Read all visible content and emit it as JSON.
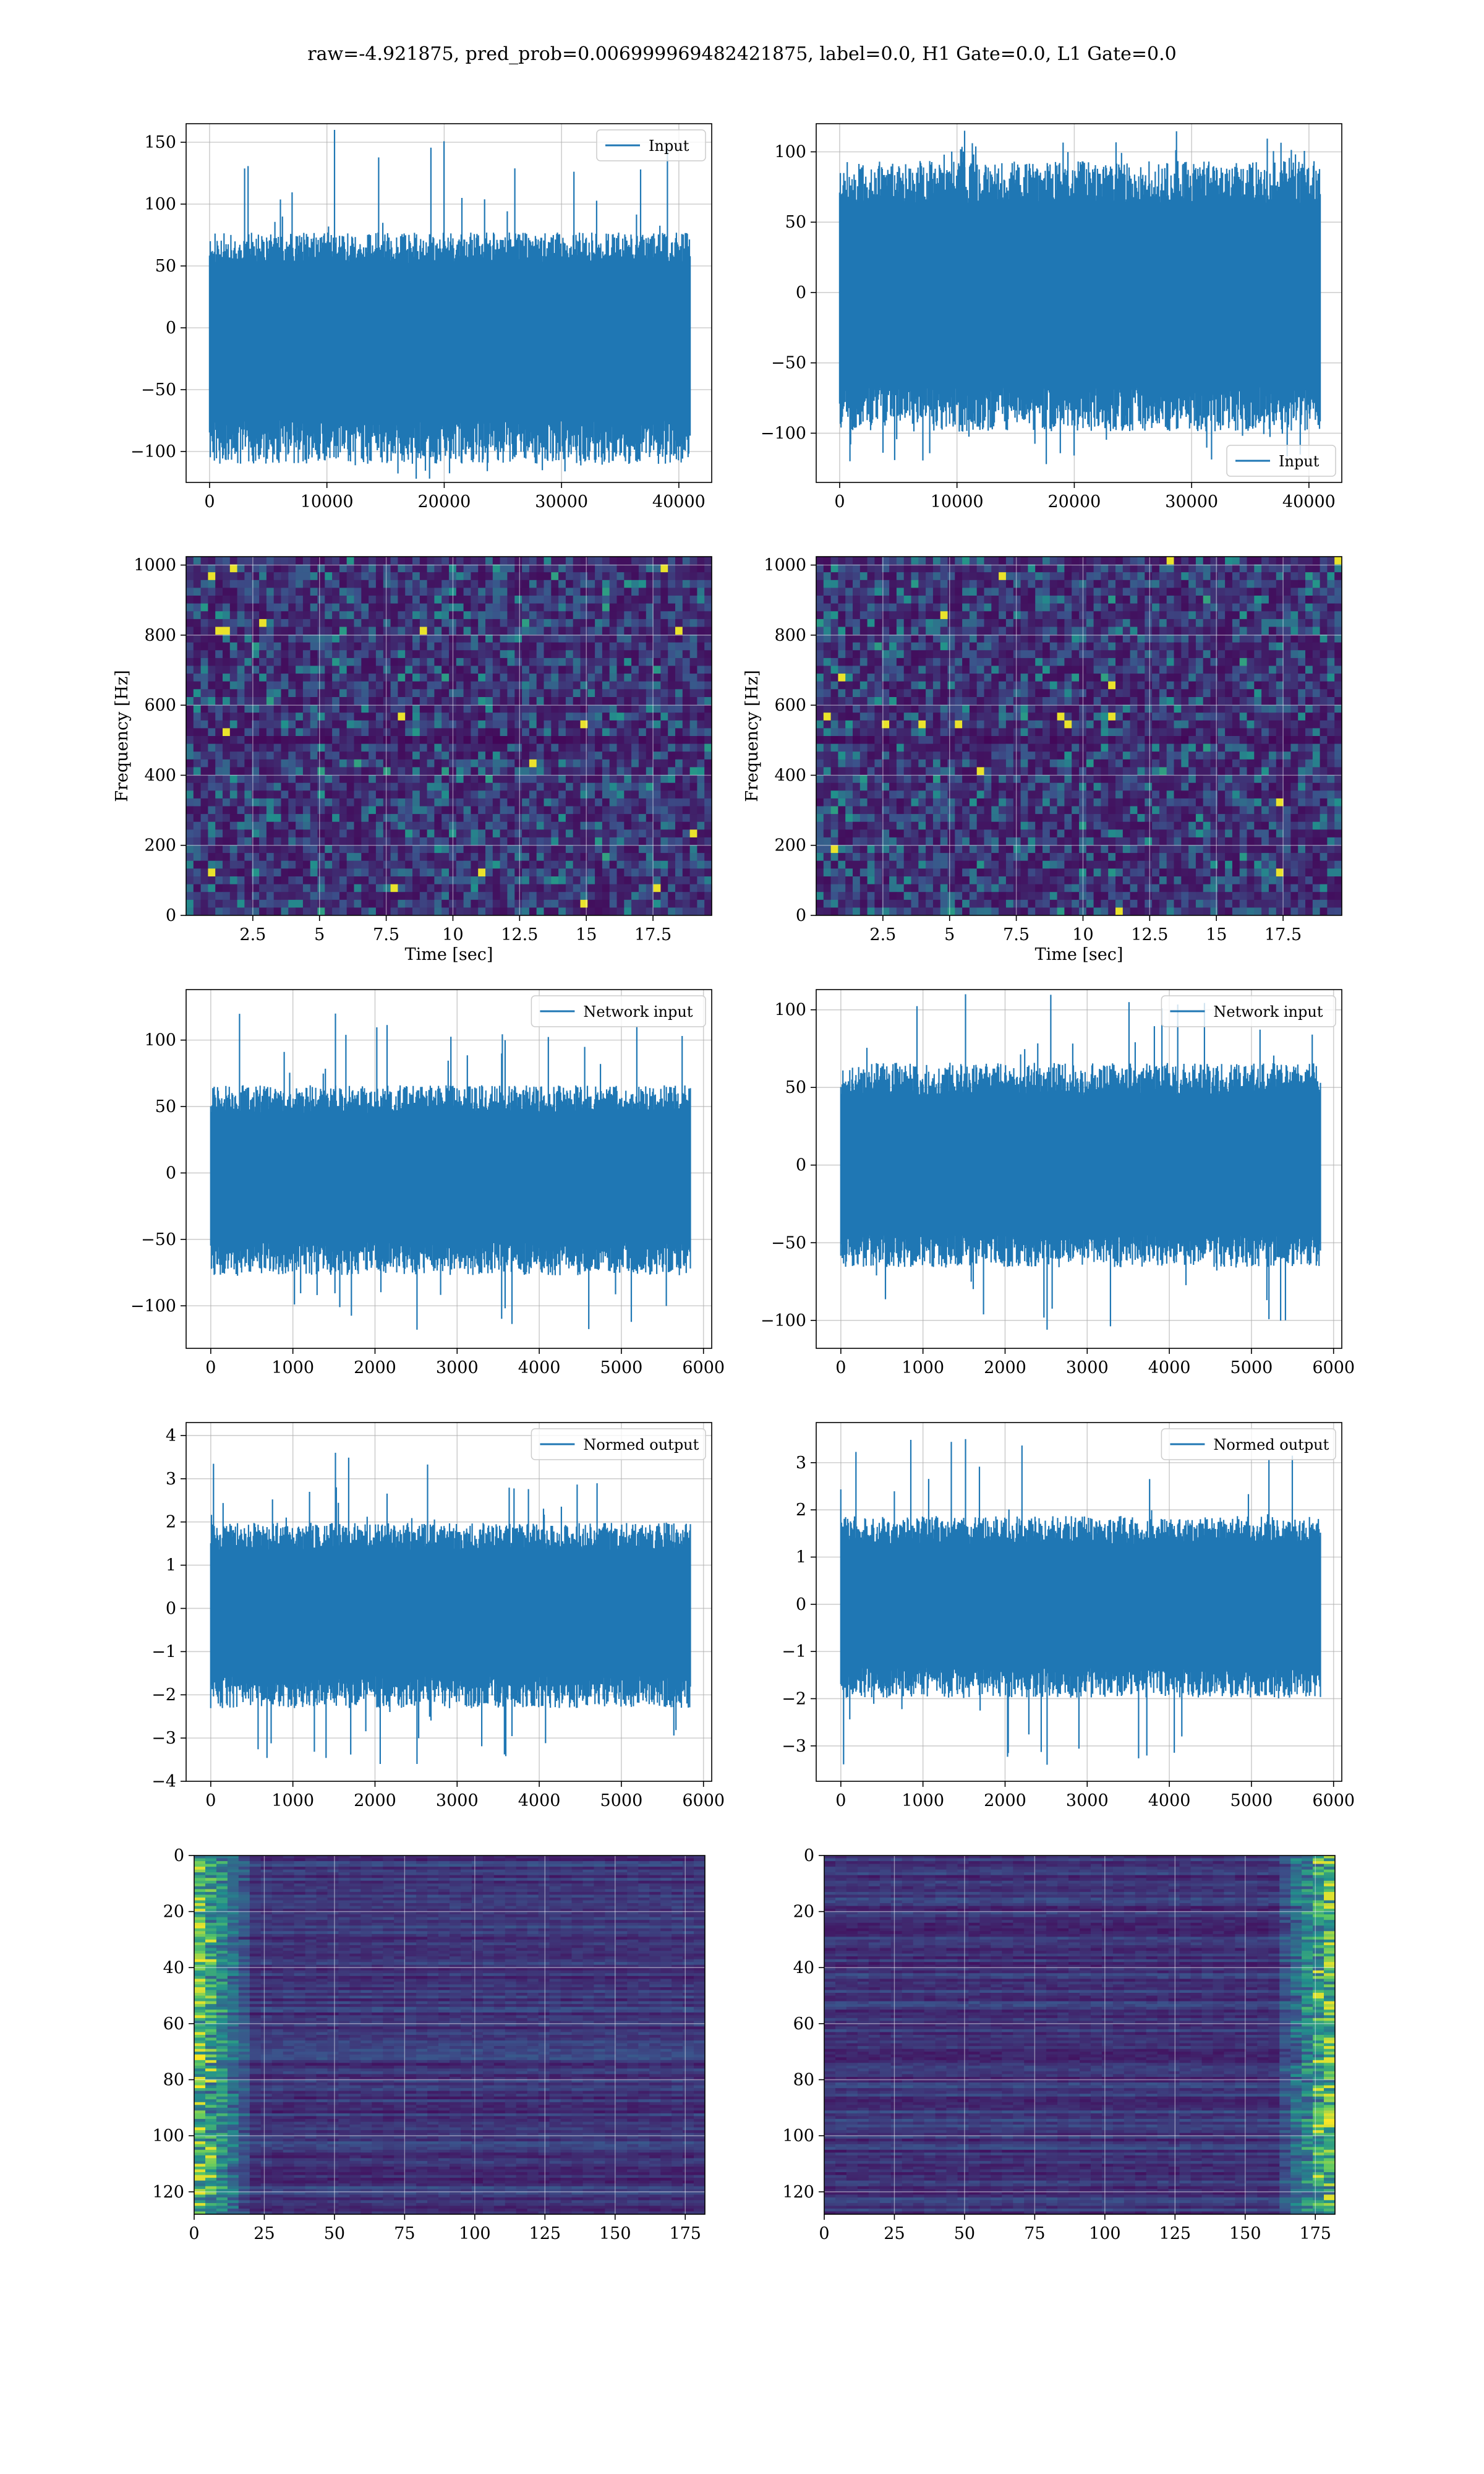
{
  "figure": {
    "title": "raw=-4.921875, pred_prob=0.006999969482421875, label=0.0, H1 Gate=0.0, L1 Gate=0.0",
    "colors": {
      "line": "#1f77b4",
      "grid": "#b0b0b0",
      "viridis_low": "#440154",
      "viridis_mid": "#21918c",
      "viridis_high": "#fde725"
    }
  },
  "chart_data": [
    {
      "id": "input-h1",
      "type": "line",
      "title": "",
      "xlabel": "",
      "ylabel": "",
      "legend": {
        "label": "Input",
        "placement": "top-right"
      },
      "xlim": [
        -2000,
        42800
      ],
      "ylim": [
        -125,
        165
      ],
      "xticks": [
        0,
        10000,
        20000,
        30000,
        40000
      ],
      "yticks": [
        -100,
        -50,
        0,
        50,
        100,
        150
      ],
      "grid": true,
      "series": [
        {
          "name": "Input",
          "x_range": [
            0,
            40960
          ],
          "band": [
            -100,
            70
          ],
          "peak_max": 160,
          "peak_min": -122,
          "samples": 700,
          "seed": 11
        }
      ]
    },
    {
      "id": "input-l1",
      "type": "line",
      "title": "",
      "xlabel": "",
      "ylabel": "",
      "legend": {
        "label": "Input",
        "placement": "bottom-right"
      },
      "xlim": [
        -2000,
        42800
      ],
      "ylim": [
        -135,
        120
      ],
      "xticks": [
        0,
        10000,
        20000,
        30000,
        40000
      ],
      "yticks": [
        -100,
        -50,
        0,
        50,
        100
      ],
      "grid": true,
      "series": [
        {
          "name": "Input",
          "x_range": [
            0,
            40960
          ],
          "band": [
            -90,
            85
          ],
          "peak_max": 115,
          "peak_min": -122,
          "samples": 700,
          "seed": 23
        }
      ]
    },
    {
      "id": "spectrogram-h1",
      "type": "heatmap",
      "title": "",
      "xlabel": "Time [sec]",
      "ylabel": "Frequency [Hz]",
      "xlim": [
        0,
        19.7
      ],
      "ylim": [
        0,
        1024
      ],
      "xticks": [
        2.5,
        5.0,
        7.5,
        10.0,
        12.5,
        15.0,
        17.5
      ],
      "yticks": [
        0,
        200,
        400,
        600,
        800,
        1000
      ],
      "grid": true,
      "colormap": "viridis",
      "cells": [
        72,
        46
      ],
      "seed": 5
    },
    {
      "id": "spectrogram-l1",
      "type": "heatmap",
      "title": "",
      "xlabel": "Time [sec]",
      "ylabel": "Frequency [Hz]",
      "xlim": [
        0,
        19.7
      ],
      "ylim": [
        0,
        1024
      ],
      "xticks": [
        2.5,
        5.0,
        7.5,
        10.0,
        12.5,
        15.0,
        17.5
      ],
      "yticks": [
        0,
        200,
        400,
        600,
        800,
        1000
      ],
      "grid": true,
      "colormap": "viridis",
      "cells": [
        72,
        46
      ],
      "seed": 9
    },
    {
      "id": "network-input-h1",
      "type": "line",
      "title": "",
      "xlabel": "",
      "ylabel": "",
      "legend": {
        "label": "Network input",
        "placement": "top-right"
      },
      "xlim": [
        -300,
        6100
      ],
      "ylim": [
        -132,
        138
      ],
      "xticks": [
        0,
        1000,
        2000,
        3000,
        4000,
        5000,
        6000
      ],
      "yticks": [
        -100,
        -50,
        0,
        50,
        100
      ],
      "grid": true,
      "series": [
        {
          "name": "Network input",
          "x_range": [
            0,
            5840
          ],
          "band": [
            -70,
            60
          ],
          "peak_max": 120,
          "peak_min": -118,
          "samples": 700,
          "seed": 31
        }
      ]
    },
    {
      "id": "network-input-l1",
      "type": "line",
      "title": "",
      "xlabel": "",
      "ylabel": "",
      "legend": {
        "label": "Network input",
        "placement": "top-right"
      },
      "xlim": [
        -300,
        6100
      ],
      "ylim": [
        -118,
        113
      ],
      "xticks": [
        0,
        1000,
        2000,
        3000,
        4000,
        5000,
        6000
      ],
      "yticks": [
        -100,
        -50,
        0,
        50,
        100
      ],
      "grid": true,
      "series": [
        {
          "name": "Network input",
          "x_range": [
            0,
            5840
          ],
          "band": [
            -60,
            60
          ],
          "peak_max": 110,
          "peak_min": -106,
          "samples": 700,
          "seed": 37
        }
      ]
    },
    {
      "id": "normed-output-h1",
      "type": "line",
      "title": "",
      "xlabel": "",
      "ylabel": "",
      "legend": {
        "label": "Normed output",
        "placement": "top-right"
      },
      "xlim": [
        -300,
        6100
      ],
      "ylim": [
        -4,
        4.3
      ],
      "xticks": [
        0,
        1000,
        2000,
        3000,
        4000,
        5000,
        6000
      ],
      "yticks": [
        -4,
        -3,
        -2,
        -1,
        0,
        1,
        2,
        3,
        4
      ],
      "grid": true,
      "series": [
        {
          "name": "Normed output",
          "x_range": [
            0,
            5840
          ],
          "band": [
            -2.1,
            1.8
          ],
          "peak_max": 3.6,
          "peak_min": -3.6,
          "samples": 700,
          "seed": 41
        }
      ]
    },
    {
      "id": "normed-output-l1",
      "type": "line",
      "title": "",
      "xlabel": "",
      "ylabel": "",
      "legend": {
        "label": "Normed output",
        "placement": "top-right"
      },
      "xlim": [
        -300,
        6100
      ],
      "ylim": [
        -3.75,
        3.85
      ],
      "xticks": [
        0,
        1000,
        2000,
        3000,
        4000,
        5000,
        6000
      ],
      "yticks": [
        -3,
        -2,
        -1,
        0,
        1,
        2,
        3
      ],
      "grid": true,
      "series": [
        {
          "name": "Normed output",
          "x_range": [
            0,
            5840
          ],
          "band": [
            -1.8,
            1.7
          ],
          "peak_max": 3.5,
          "peak_min": -3.4,
          "samples": 700,
          "seed": 47
        }
      ]
    },
    {
      "id": "feature-map-h1",
      "type": "heatmap",
      "title": "",
      "xlabel": "",
      "ylabel": "",
      "xlim": [
        0,
        182
      ],
      "ylim": [
        128,
        0
      ],
      "xticks": [
        0,
        25,
        50,
        75,
        100,
        125,
        150,
        175
      ],
      "yticks": [
        0,
        20,
        40,
        60,
        80,
        100,
        120
      ],
      "grid": true,
      "colormap": "viridis",
      "rows": 128,
      "cols": 182,
      "bright_side": "left",
      "seed": 53
    },
    {
      "id": "feature-map-l1",
      "type": "heatmap",
      "title": "",
      "xlabel": "",
      "ylabel": "",
      "xlim": [
        0,
        182
      ],
      "ylim": [
        128,
        0
      ],
      "xticks": [
        0,
        25,
        50,
        75,
        100,
        125,
        150,
        175
      ],
      "yticks": [
        0,
        20,
        40,
        60,
        80,
        100,
        120
      ],
      "grid": true,
      "colormap": "viridis",
      "rows": 128,
      "cols": 182,
      "bright_side": "right",
      "seed": 59
    }
  ]
}
